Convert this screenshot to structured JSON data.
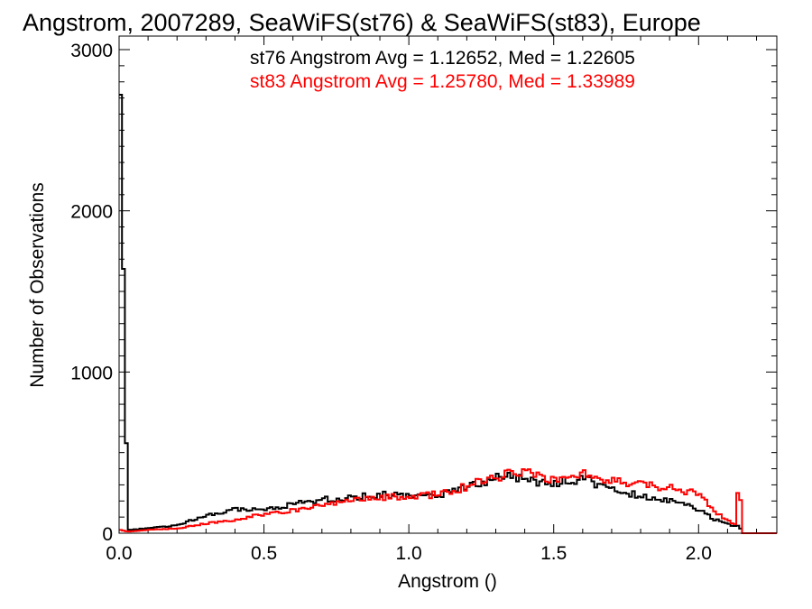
{
  "chart_data": {
    "type": "line",
    "title": "Angstrom, 2007289, SeaWiFS(st76) & SeaWiFS(st83), Europe",
    "xlabel": "Angstrom ()",
    "ylabel": "Number of Observations",
    "xlim": [
      0.0,
      2.27
    ],
    "ylim": [
      0,
      3000
    ],
    "x_ticks": [
      "0.0",
      "0.5",
      "1.0",
      "1.5",
      "2.0"
    ],
    "y_ticks": [
      "0",
      "1000",
      "2000",
      "3000"
    ],
    "grid": false,
    "annotations": [
      {
        "text": "st76 Angstrom Avg = 1.12652, Med = 1.22605",
        "color": "#000000"
      },
      {
        "text": "st83 Angstrom Avg = 1.25780, Med = 1.33989",
        "color": "#ff0000"
      }
    ],
    "series": [
      {
        "name": "st76",
        "color": "#000000",
        "x": [
          0.0,
          0.005,
          0.03,
          0.1,
          0.2,
          0.3,
          0.4,
          0.5,
          0.6,
          0.7,
          0.8,
          0.9,
          1.0,
          1.1,
          1.2,
          1.3,
          1.35,
          1.4,
          1.5,
          1.6,
          1.7,
          1.8,
          1.9,
          2.0,
          2.05,
          2.1,
          2.13,
          2.14,
          2.15,
          2.16,
          2.27
        ],
        "values": [
          80,
          2720,
          20,
          30,
          50,
          110,
          150,
          140,
          180,
          210,
          220,
          240,
          230,
          230,
          290,
          340,
          360,
          330,
          310,
          340,
          270,
          230,
          200,
          150,
          90,
          60,
          40,
          60,
          0,
          0,
          0
        ]
      },
      {
        "name": "st83",
        "color": "#ff0000",
        "x": [
          0.0,
          0.005,
          0.03,
          0.1,
          0.2,
          0.3,
          0.4,
          0.5,
          0.6,
          0.7,
          0.8,
          0.9,
          1.0,
          1.1,
          1.2,
          1.3,
          1.35,
          1.4,
          1.5,
          1.6,
          1.7,
          1.8,
          1.9,
          2.0,
          2.05,
          2.1,
          2.13,
          2.14,
          2.15,
          2.16,
          2.27
        ],
        "values": [
          120,
          20,
          10,
          20,
          30,
          60,
          80,
          120,
          140,
          180,
          200,
          220,
          230,
          240,
          290,
          350,
          370,
          370,
          340,
          370,
          320,
          300,
          280,
          250,
          140,
          80,
          50,
          410,
          0,
          0,
          0
        ]
      }
    ]
  }
}
